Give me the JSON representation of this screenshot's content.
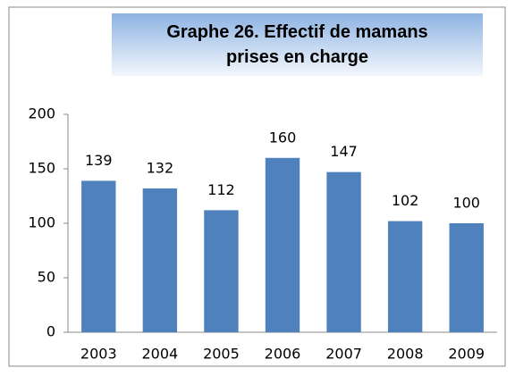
{
  "chart_data": {
    "type": "bar",
    "title": "Graphe 26. Effectif de mamans prises en charge",
    "categories": [
      "2003",
      "2004",
      "2005",
      "2006",
      "2007",
      "2008",
      "2009"
    ],
    "values": [
      139,
      132,
      112,
      160,
      147,
      102,
      100
    ],
    "color": "#4f81bd",
    "ylim": [
      0,
      200
    ],
    "yticks": [
      0,
      50,
      100,
      150,
      200
    ],
    "grid": false
  }
}
